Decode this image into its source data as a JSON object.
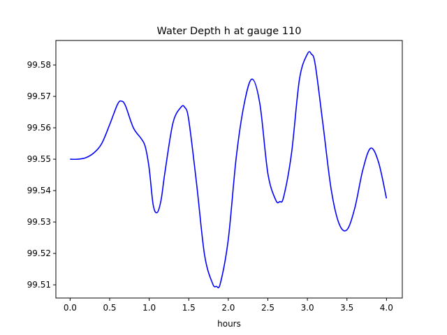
{
  "chart_data": {
    "type": "line",
    "title": "Water Depth h at gauge 110",
    "xlabel": "hours",
    "ylabel": "",
    "xlim": [
      -0.18,
      4.2
    ],
    "ylim": [
      99.5058,
      99.5878
    ],
    "xticks": [
      0.0,
      0.5,
      1.0,
      1.5,
      2.0,
      2.5,
      3.0,
      3.5,
      4.0
    ],
    "xtick_labels": [
      "0.0",
      "0.5",
      "1.0",
      "1.5",
      "2.0",
      "2.5",
      "3.0",
      "3.5",
      "4.0"
    ],
    "yticks": [
      99.51,
      99.52,
      99.53,
      99.54,
      99.55,
      99.56,
      99.57,
      99.58
    ],
    "ytick_labels": [
      "99.51",
      "99.52",
      "99.53",
      "99.54",
      "99.55",
      "99.56",
      "99.57",
      "99.58"
    ],
    "grid": false,
    "series": [
      {
        "color": "#0000ff",
        "x": [
          0.0,
          0.1,
          0.2,
          0.3,
          0.4,
          0.5,
          0.6,
          0.65,
          0.7,
          0.8,
          0.9,
          0.95,
          1.0,
          1.05,
          1.1,
          1.15,
          1.2,
          1.3,
          1.4,
          1.45,
          1.5,
          1.6,
          1.7,
          1.8,
          1.85,
          1.9,
          2.0,
          2.1,
          2.2,
          2.3,
          2.4,
          2.5,
          2.6,
          2.65,
          2.7,
          2.8,
          2.9,
          3.0,
          3.05,
          3.1,
          3.2,
          3.3,
          3.4,
          3.5,
          3.6,
          3.7,
          3.8,
          3.9,
          4.0
        ],
        "y": [
          99.55,
          99.55,
          99.5505,
          99.552,
          99.555,
          99.561,
          99.5675,
          99.5685,
          99.567,
          99.56,
          99.5565,
          99.554,
          99.547,
          99.5355,
          99.533,
          99.537,
          99.546,
          99.5615,
          99.5665,
          99.5665,
          99.5625,
          99.542,
          99.5195,
          99.5105,
          99.5095,
          99.5105,
          99.5245,
          99.5505,
          99.5675,
          99.5755,
          99.5675,
          99.5455,
          99.537,
          99.5365,
          99.538,
          99.552,
          99.5755,
          99.5835,
          99.5835,
          99.58,
          99.5605,
          99.5405,
          99.5295,
          99.5275,
          99.5345,
          99.5465,
          99.5535,
          99.549,
          99.5375
        ]
      }
    ]
  }
}
